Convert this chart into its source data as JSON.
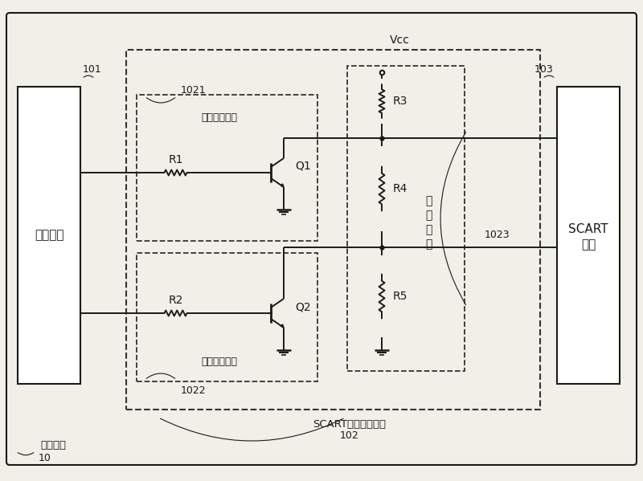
{
  "bg_color": "#f0efe8",
  "line_color": "#1a1a1a",
  "dashed_color": "#333333",
  "labels": {
    "chip": "处理芯片",
    "scart_line1": "SCART",
    "scart_line2": "接口",
    "electronic": "电子设备",
    "circuit102": "SCART接口控制电路",
    "label10": "10",
    "label101": "101",
    "label102": "102",
    "label103": "103",
    "label1021": "1021",
    "label1022": "1022",
    "label1023": "1023",
    "sw1": "第一开关电路",
    "sw2": "第二开关电路",
    "div1": "分",
    "div2": "压",
    "div3": "电",
    "div4": "路",
    "vcc": "Vcc",
    "R1": "R1",
    "R2": "R2",
    "R3": "R3",
    "R4": "R4",
    "R5": "R5",
    "Q1": "Q1",
    "Q2": "Q2"
  }
}
